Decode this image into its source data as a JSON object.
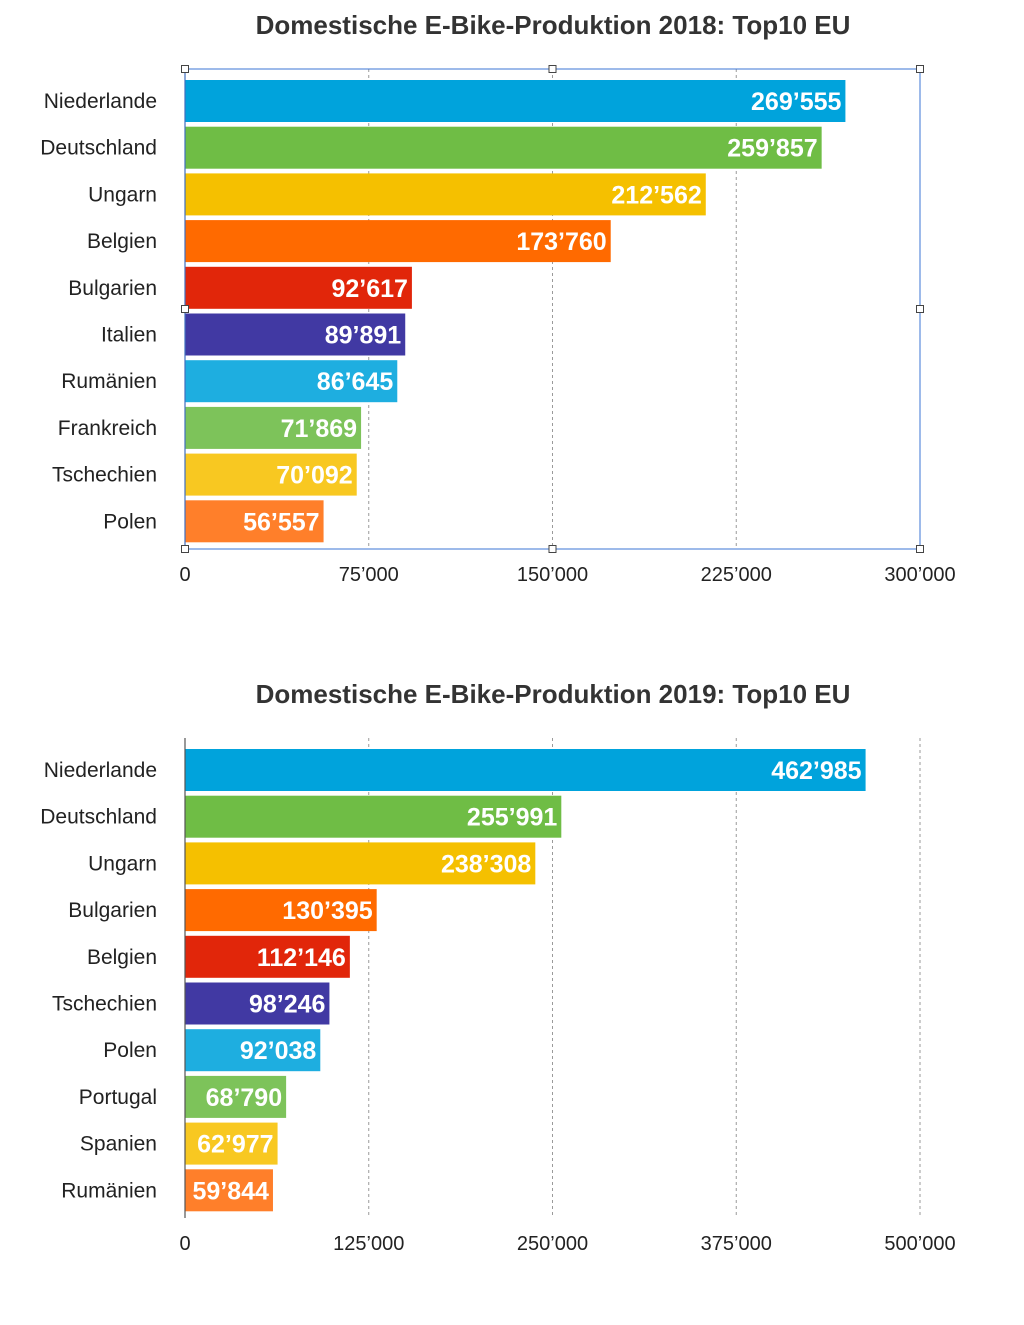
{
  "chart_data": [
    {
      "type": "bar",
      "orientation": "horizontal",
      "title": "Domestische E-Bike-Produktion 2018: Top10 EU",
      "categories": [
        "Niederlande",
        "Deutschland",
        "Ungarn",
        "Belgien",
        "Bulgarien",
        "Italien",
        "Rumänien",
        "Frankreich",
        "Tschechien",
        "Polen"
      ],
      "values": [
        269555,
        259857,
        212562,
        173760,
        92617,
        89891,
        86645,
        71869,
        70092,
        56557
      ],
      "value_labels": [
        "269’555",
        "259’857",
        "212’562",
        "173’760",
        "92’617",
        "89’891",
        "86’645",
        "71’869",
        "70’092",
        "56’557"
      ],
      "colors": [
        "#00a3dc",
        "#6fbd45",
        "#f5c000",
        "#ff6a00",
        "#e1260a",
        "#4139a3",
        "#1eaee0",
        "#7dc35a",
        "#f8c821",
        "#ff7f2a"
      ],
      "xlim": [
        0,
        300000
      ],
      "ticks": [
        0,
        75000,
        150000,
        225000,
        300000
      ],
      "tick_labels": [
        "0",
        "75’000",
        "150’000",
        "225’000",
        "300’000"
      ],
      "grid": true,
      "selected": true
    },
    {
      "type": "bar",
      "orientation": "horizontal",
      "title": "Domestische E-Bike-Produktion 2019: Top10 EU",
      "categories": [
        "Niederlande",
        "Deutschland",
        "Ungarn",
        "Bulgarien",
        "Belgien",
        "Tschechien",
        "Polen",
        "Portugal",
        "Spanien",
        "Rumänien"
      ],
      "values": [
        462985,
        255991,
        238308,
        130395,
        112146,
        98246,
        92038,
        68790,
        62977,
        59844
      ],
      "value_labels": [
        "462’985",
        "255’991",
        "238’308",
        "130’395",
        "112’146",
        "98’246",
        "92’038",
        "68’790",
        "62’977",
        "59’844"
      ],
      "colors": [
        "#00a3dc",
        "#6fbd45",
        "#f5c000",
        "#ff6a00",
        "#e1260a",
        "#4139a3",
        "#1eaee0",
        "#7dc35a",
        "#f8c821",
        "#ff7f2a"
      ],
      "xlim": [
        0,
        500000
      ],
      "ticks": [
        0,
        125000,
        250000,
        375000,
        500000
      ],
      "tick_labels": [
        "0",
        "125’000",
        "250’000",
        "375’000",
        "500’000"
      ],
      "grid": true,
      "selected": false
    }
  ]
}
